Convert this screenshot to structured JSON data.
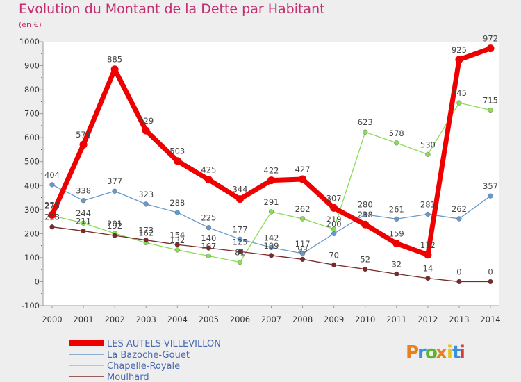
{
  "title": "Evolution du Montant de la Dette par Habitant",
  "unit": "(en €)",
  "logo": "Proxiti",
  "chart_data": {
    "type": "line",
    "x": [
      "2000",
      "2001",
      "2002",
      "2003",
      "2004",
      "2005",
      "2006",
      "2007",
      "2008",
      "2009",
      "2010",
      "2011",
      "2012",
      "2013",
      "2014"
    ],
    "ylim": [
      -100,
      1000
    ],
    "yticks": [
      -100,
      0,
      100,
      200,
      300,
      400,
      500,
      600,
      700,
      800,
      900,
      1000
    ],
    "grid": false,
    "legend": "bottom-left",
    "series": [
      {
        "name": "LES AUTELS-VILLEVILLON",
        "color": "#ee0000",
        "width": 7,
        "values": [
          278,
          571,
          885,
          629,
          503,
          425,
          344,
          422,
          427,
          307,
          238,
          159,
          112,
          925,
          972
        ],
        "labels": [
          "278",
          "571",
          "885",
          "629",
          "503",
          "425",
          "344",
          "422",
          "427",
          "307",
          "238",
          "159",
          "112",
          "925",
          "972"
        ]
      },
      {
        "name": "La Bazoche-Gouet",
        "color": "#6699cc",
        "width": 1.3,
        "values": [
          404,
          338,
          377,
          323,
          288,
          225,
          177,
          142,
          117,
          200,
          280,
          261,
          281,
          262,
          357
        ],
        "labels": [
          "404",
          "338",
          "377",
          "323",
          "288",
          "225",
          "177",
          "142",
          "117",
          "200",
          "280",
          "261",
          "281",
          "262",
          "357"
        ]
      },
      {
        "name": "Chapelle-Royale",
        "color": "#88dd55",
        "width": 1.3,
        "values": [
          275,
          244,
          201,
          162,
          132,
          107,
          81,
          291,
          262,
          219,
          623,
          578,
          530,
          745,
          715
        ],
        "labels": [
          "275",
          "244",
          "201",
          "162",
          "132",
          "107",
          "81",
          "291",
          "262",
          "219",
          "623",
          "578",
          "530",
          "745",
          "715"
        ]
      },
      {
        "name": "Moulhard",
        "color": "#7a2a2a",
        "width": 1.3,
        "values": [
          228,
          211,
          192,
          173,
          154,
          140,
          125,
          109,
          93,
          70,
          52,
          32,
          14,
          0,
          0
        ],
        "labels": [
          "228",
          "211",
          "192",
          "173",
          "154",
          "140",
          "125",
          "109",
          "93",
          "70",
          "52",
          "32",
          "14",
          "0",
          "0"
        ]
      }
    ]
  }
}
